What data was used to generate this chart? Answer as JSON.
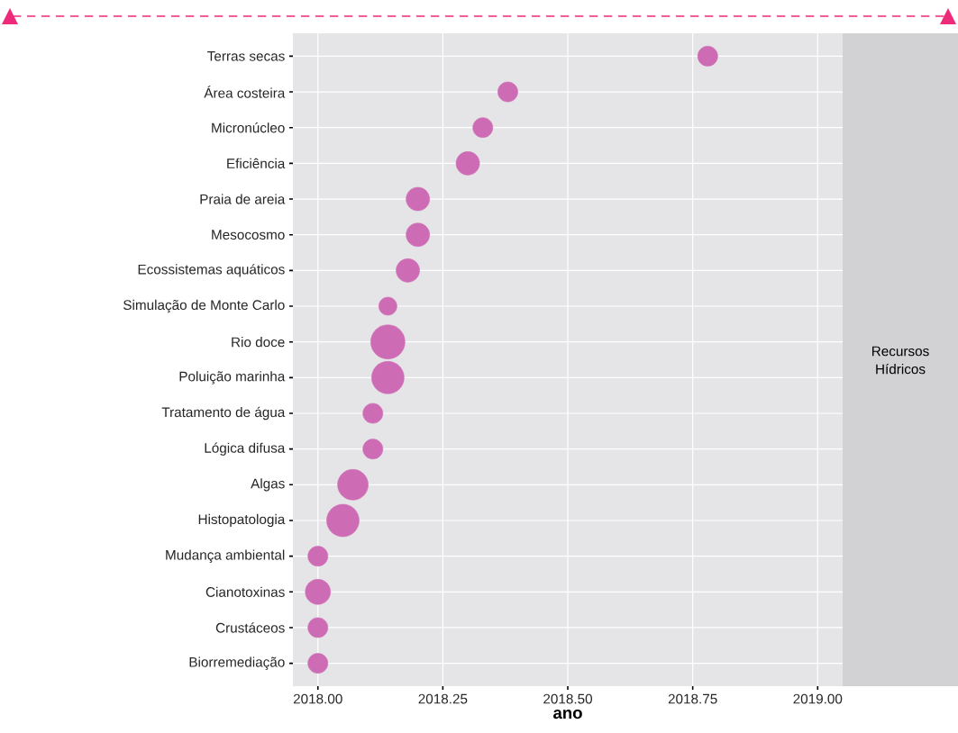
{
  "chart_data": {
    "type": "bubble",
    "orientation": "horizontal",
    "title": "Recursos Hídricos",
    "xlabel": "ano",
    "categories": [
      "Terras secas",
      "Área costeira",
      "Micronúcleo",
      "Eficiência",
      "Praia de areia",
      "Mesocosmo",
      "Ecossistemas aquáticos",
      "Simulação de Monte Carlo",
      "Rio doce",
      "Poluição marinha",
      "Tratamento de água",
      "Lógica difusa",
      "Algas",
      "Histopatologia",
      "Mudança ambiental",
      "Cianotoxinas",
      "Crustáceos",
      "Biorremediação"
    ],
    "values": [
      2018.78,
      2018.38,
      2018.33,
      2018.3,
      2018.2,
      2018.2,
      2018.18,
      2018.14,
      2018.14,
      2018.14,
      2018.11,
      2018.11,
      2018.07,
      2018.05,
      2018.0,
      2018.0,
      2018.0,
      2018.0
    ],
    "sizes": [
      0.34,
      0.34,
      0.34,
      0.47,
      0.47,
      0.47,
      0.47,
      0.28,
      1,
      0.9,
      0.34,
      0.34,
      0.8,
      0.9,
      0.34,
      0.54,
      0.34,
      0.34
    ],
    "color": "#cd6cb5",
    "xlim": [
      2017.95,
      2019.05
    ],
    "xticks": [
      {
        "value": 2018,
        "label": "2018.00"
      },
      {
        "value": 2018.25,
        "label": "2018.25"
      },
      {
        "value": 2018.5,
        "label": "2018.50"
      },
      {
        "value": 2018.75,
        "label": "2018.75"
      },
      {
        "value": 2019,
        "label": "2019.00"
      }
    ],
    "grid": true
  }
}
